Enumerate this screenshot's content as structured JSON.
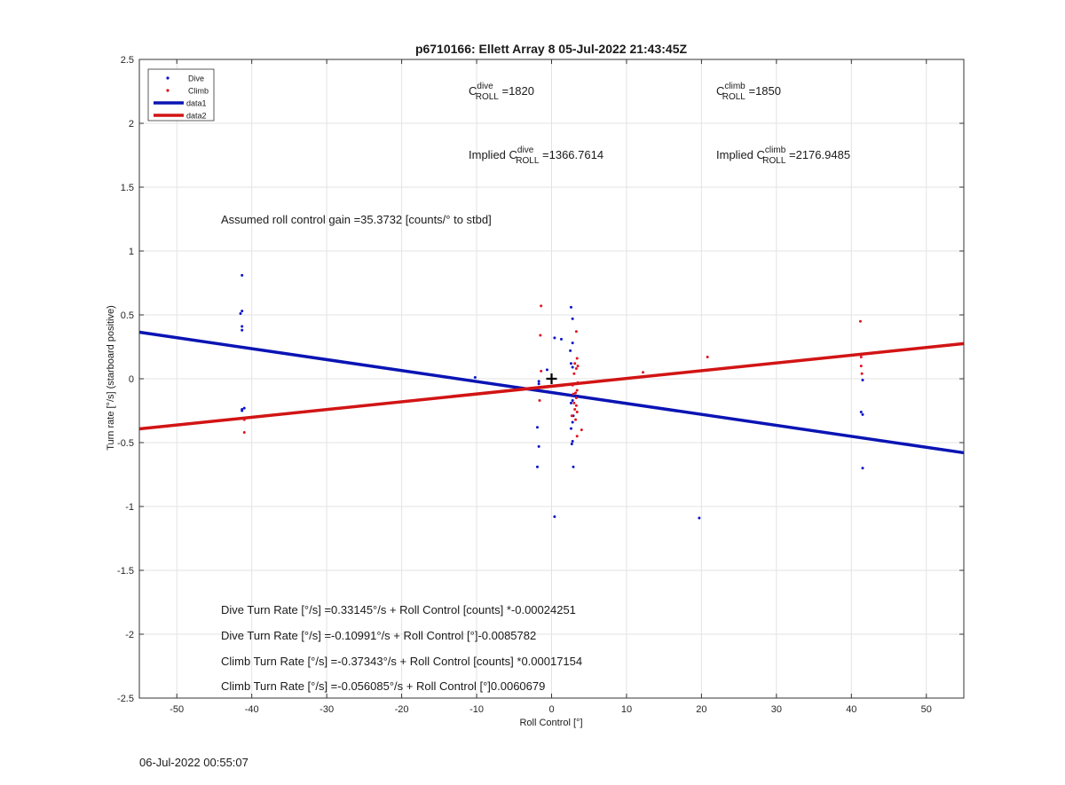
{
  "chart_data": {
    "type": "scatter",
    "title": "p6710166: Ellett Array 8 05-Jul-2022 21:43:45Z",
    "xlabel": "Roll Control [°]",
    "ylabel": "Turn rate [°/s] (starboard positive)",
    "xlim": [
      -55,
      55
    ],
    "ylim": [
      -2.5,
      2.5
    ],
    "xticks": [
      -50,
      -40,
      -30,
      -20,
      -10,
      0,
      10,
      20,
      30,
      40,
      50
    ],
    "yticks": [
      -2.5,
      -2,
      -1.5,
      -1,
      -0.5,
      0,
      0.5,
      1,
      1.5,
      2,
      2.5
    ],
    "grid": true,
    "legend_position": "top-left",
    "series": [
      {
        "name": "Dive",
        "kind": "points",
        "color": "#0a14c8",
        "points": [
          [
            -41.3,
            0.81
          ],
          [
            -41.3,
            0.53
          ],
          [
            -41.5,
            0.51
          ],
          [
            -41.3,
            0.41
          ],
          [
            -41.3,
            0.38
          ],
          [
            -41.0,
            -0.23
          ],
          [
            -41.3,
            -0.24
          ],
          [
            -41.3,
            -0.25
          ],
          [
            -10.2,
            0.01
          ],
          [
            -1.7,
            -0.02
          ],
          [
            -1.7,
            -0.04
          ],
          [
            -1.9,
            -0.38
          ],
          [
            -1.7,
            -0.53
          ],
          [
            -1.9,
            -0.69
          ],
          [
            0.4,
            0.32
          ],
          [
            1.3,
            0.31
          ],
          [
            -0.6,
            0.07
          ],
          [
            0.4,
            -1.08
          ],
          [
            2.6,
            0.56
          ],
          [
            2.8,
            0.47
          ],
          [
            2.8,
            0.28
          ],
          [
            2.5,
            0.22
          ],
          [
            2.6,
            0.12
          ],
          [
            2.8,
            0.09
          ],
          [
            2.9,
            -0.13
          ],
          [
            2.8,
            -0.17
          ],
          [
            2.6,
            -0.19
          ],
          [
            2.9,
            -0.29
          ],
          [
            2.8,
            -0.34
          ],
          [
            2.6,
            -0.39
          ],
          [
            2.8,
            -0.49
          ],
          [
            2.7,
            -0.51
          ],
          [
            2.9,
            -0.69
          ],
          [
            19.7,
            -1.09
          ],
          [
            41.5,
            -0.01
          ],
          [
            41.3,
            -0.26
          ],
          [
            41.5,
            -0.28
          ],
          [
            41.5,
            -0.7
          ]
        ]
      },
      {
        "name": "Climb",
        "kind": "points",
        "color": "#e0141e",
        "points": [
          [
            -41.0,
            -0.32
          ],
          [
            -41.0,
            -0.42
          ],
          [
            -1.4,
            0.57
          ],
          [
            -1.5,
            0.34
          ],
          [
            -1.4,
            0.06
          ],
          [
            -1.6,
            -0.17
          ],
          [
            3.3,
            0.37
          ],
          [
            3.4,
            0.16
          ],
          [
            3.1,
            0.12
          ],
          [
            3.5,
            0.1
          ],
          [
            3.3,
            0.08
          ],
          [
            3.0,
            0.04
          ],
          [
            3.5,
            -0.03
          ],
          [
            2.8,
            -0.05
          ],
          [
            3.4,
            -0.09
          ],
          [
            3.2,
            -0.11
          ],
          [
            2.9,
            -0.12
          ],
          [
            3.3,
            -0.15
          ],
          [
            3.0,
            -0.19
          ],
          [
            3.3,
            -0.21
          ],
          [
            3.1,
            -0.24
          ],
          [
            3.4,
            -0.26
          ],
          [
            2.7,
            -0.29
          ],
          [
            3.2,
            -0.32
          ],
          [
            4.0,
            -0.4
          ],
          [
            3.4,
            -0.45
          ],
          [
            12.2,
            0.05
          ],
          [
            20.8,
            0.17
          ],
          [
            41.2,
            0.45
          ],
          [
            41.3,
            0.17
          ],
          [
            41.3,
            0.1
          ],
          [
            41.4,
            0.04
          ]
        ]
      },
      {
        "name": "data1",
        "kind": "line",
        "color": "#0a14b4",
        "x": [
          -55,
          55
        ],
        "y": [
          0.3643,
          -0.5794
        ]
      },
      {
        "name": "data2",
        "kind": "line",
        "color": "#d21414",
        "x": [
          -55,
          55
        ],
        "y": [
          -0.3925,
          0.2753
        ]
      }
    ],
    "marker_point": [
      0,
      0
    ]
  },
  "annotations": {
    "c_roll_dive_c": "C",
    "c_roll_dive_sup": "dive",
    "c_roll_dive_sub": "ROLL",
    "c_roll_dive_val": " =1820",
    "c_roll_climb_c": "C",
    "c_roll_climb_sup": "climb",
    "c_roll_climb_sub": "ROLL",
    "c_roll_climb_val": " =1850",
    "implied_dive_pre": "Implied C",
    "implied_dive_sup": "dive",
    "implied_dive_sub": "ROLL",
    "implied_dive_val": " =1366.7614",
    "implied_climb_pre": "Implied C",
    "implied_climb_sup": "climb",
    "implied_climb_sub": "ROLL",
    "implied_climb_val": " =2176.9485",
    "gain": "Assumed roll control gain =35.3732 [counts/° to stbd]",
    "eq1": "Dive Turn Rate [°/s] =0.33145°/s + Roll Control [counts] *-0.00024251",
    "eq2": "Dive Turn Rate [°/s] =-0.10991°/s + Roll Control [°]-0.0085782",
    "eq3": "Climb Turn Rate [°/s] =-0.37343°/s + Roll Control [counts] *0.00017154",
    "eq4": "Climb Turn Rate [°/s] =-0.056085°/s + Roll Control [°]0.0060679"
  },
  "footer": "06-Jul-2022 00:55:07"
}
